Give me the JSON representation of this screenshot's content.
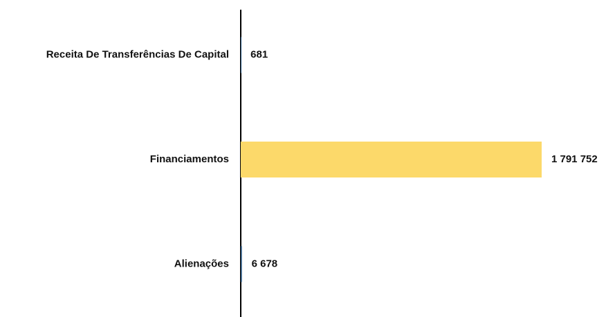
{
  "chart_data": {
    "type": "barh",
    "categories": [
      "Receita De Transferências De Capital",
      "Financiamentos",
      "Alienações"
    ],
    "values": [
      681,
      1791752,
      6678
    ],
    "value_labels": [
      "681",
      "1 791 752",
      "6 678"
    ],
    "colors": [
      "#1f4e79",
      "#fcd96a",
      "#1f4e79"
    ],
    "xlim": [
      0,
      1800000
    ]
  }
}
